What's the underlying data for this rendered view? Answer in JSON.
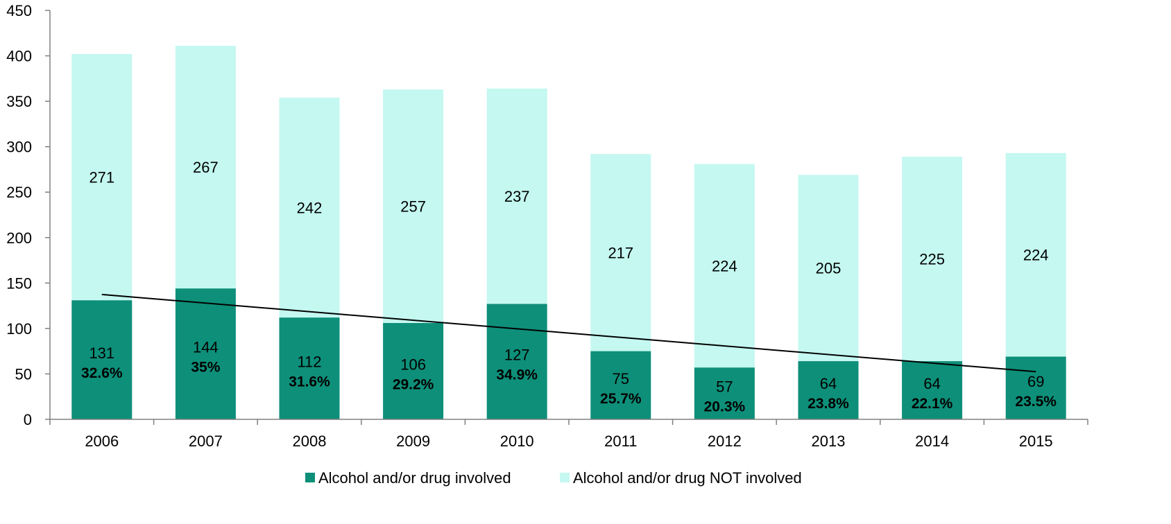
{
  "chart_data": {
    "type": "bar",
    "stacked": true,
    "categories": [
      "2006",
      "2007",
      "2008",
      "2009",
      "2010",
      "2011",
      "2012",
      "2013",
      "2014",
      "2015"
    ],
    "series": [
      {
        "name": "Alcohol and/or drug involved",
        "color": "#0e8f79",
        "values": [
          131,
          144,
          112,
          106,
          127,
          75,
          57,
          64,
          64,
          69
        ],
        "percent_labels": [
          "32.6%",
          "35%",
          "31.6%",
          "29.2%",
          "34.9%",
          "25.7%",
          "20.3%",
          "23.8%",
          "22.1%",
          "23.5%"
        ]
      },
      {
        "name": "Alcohol and/or drug NOT involved",
        "color": "#c4f8f0",
        "values": [
          271,
          267,
          242,
          257,
          237,
          217,
          224,
          205,
          225,
          224
        ]
      }
    ],
    "trendline": {
      "series": "Alcohol and/or drug involved",
      "type": "linear",
      "color": "#000000"
    },
    "ylim": [
      0,
      450
    ],
    "yticks": [
      0,
      50,
      100,
      150,
      200,
      250,
      300,
      350,
      400,
      450
    ],
    "title": "",
    "xlabel": "",
    "ylabel": "",
    "grid": false,
    "legend_position": "bottom-center"
  }
}
